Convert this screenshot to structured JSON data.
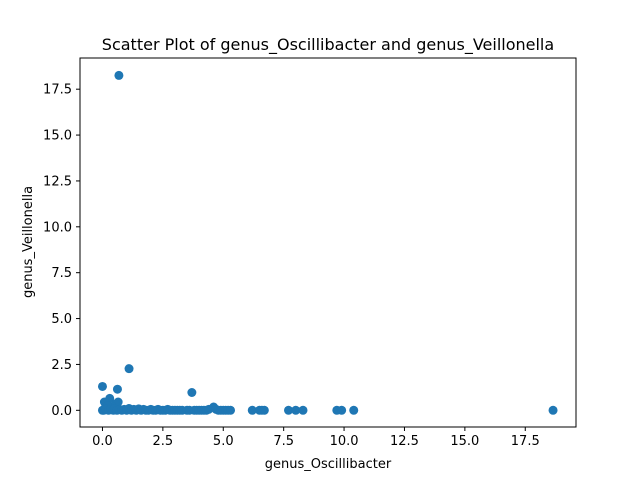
{
  "chart_data": {
    "type": "scatter",
    "title": "Scatter Plot of genus_Oscillibacter and genus_Veillonella",
    "xlabel": "genus_Oscillibacter",
    "ylabel": "genus_Veillonella",
    "xlim": [
      -0.93,
      19.6
    ],
    "ylim": [
      -0.91,
      19.2
    ],
    "xticks": [
      0.0,
      2.5,
      5.0,
      7.5,
      10.0,
      12.5,
      15.0,
      17.5
    ],
    "xtick_labels": [
      "0.0",
      "2.5",
      "5.0",
      "7.5",
      "10.0",
      "12.5",
      "15.0",
      "17.5"
    ],
    "yticks": [
      0.0,
      2.5,
      5.0,
      7.5,
      10.0,
      12.5,
      15.0,
      17.5
    ],
    "ytick_labels": [
      "0.0",
      "2.5",
      "5.0",
      "7.5",
      "10.0",
      "12.5",
      "15.0",
      "17.5"
    ],
    "grid": false,
    "legend": "none",
    "marker_color": "#1f77b4",
    "points": [
      [
        0.68,
        18.25
      ],
      [
        0.0,
        1.3
      ],
      [
        0.62,
        1.15
      ],
      [
        1.1,
        2.27
      ],
      [
        3.7,
        0.97
      ],
      [
        0.08,
        0.45
      ],
      [
        0.3,
        0.65
      ],
      [
        0.55,
        0.35
      ],
      [
        0.65,
        0.45
      ],
      [
        0.4,
        0.2
      ],
      [
        0.2,
        0.25
      ],
      [
        0.1,
        0.1
      ],
      [
        0.0,
        0.0
      ],
      [
        0.05,
        0.0
      ],
      [
        0.15,
        0.05
      ],
      [
        0.25,
        0.0
      ],
      [
        0.35,
        0.05
      ],
      [
        0.45,
        0.0
      ],
      [
        0.5,
        0.1
      ],
      [
        0.6,
        0.0
      ],
      [
        0.7,
        0.05
      ],
      [
        0.8,
        0.0
      ],
      [
        0.9,
        0.05
      ],
      [
        1.0,
        0.0
      ],
      [
        1.1,
        0.1
      ],
      [
        1.2,
        0.0
      ],
      [
        1.3,
        0.05
      ],
      [
        1.4,
        0.0
      ],
      [
        1.5,
        0.08
      ],
      [
        1.6,
        0.0
      ],
      [
        1.7,
        0.05
      ],
      [
        1.8,
        0.0
      ],
      [
        1.9,
        0.0
      ],
      [
        2.0,
        0.05
      ],
      [
        2.1,
        0.0
      ],
      [
        2.2,
        0.0
      ],
      [
        2.3,
        0.05
      ],
      [
        2.4,
        0.0
      ],
      [
        2.5,
        0.0
      ],
      [
        2.6,
        0.0
      ],
      [
        2.7,
        0.05
      ],
      [
        2.8,
        0.0
      ],
      [
        2.9,
        0.0
      ],
      [
        3.0,
        0.0
      ],
      [
        3.1,
        0.0
      ],
      [
        3.2,
        0.0
      ],
      [
        3.3,
        0.0
      ],
      [
        3.5,
        0.0
      ],
      [
        3.6,
        0.0
      ],
      [
        3.8,
        0.0
      ],
      [
        3.9,
        0.0
      ],
      [
        4.0,
        0.0
      ],
      [
        4.1,
        0.0
      ],
      [
        4.2,
        0.0
      ],
      [
        4.3,
        0.0
      ],
      [
        4.4,
        0.05
      ],
      [
        4.6,
        0.18
      ],
      [
        4.7,
        0.05
      ],
      [
        4.8,
        0.0
      ],
      [
        4.9,
        0.0
      ],
      [
        5.0,
        0.0
      ],
      [
        5.1,
        0.0
      ],
      [
        5.2,
        0.0
      ],
      [
        5.3,
        0.0
      ],
      [
        6.2,
        0.0
      ],
      [
        6.5,
        0.0
      ],
      [
        6.6,
        0.0
      ],
      [
        6.7,
        0.0
      ],
      [
        7.7,
        0.0
      ],
      [
        8.0,
        0.0
      ],
      [
        8.3,
        0.0
      ],
      [
        9.7,
        0.0
      ],
      [
        9.9,
        0.0
      ],
      [
        10.4,
        0.0
      ],
      [
        18.65,
        0.0
      ]
    ]
  }
}
